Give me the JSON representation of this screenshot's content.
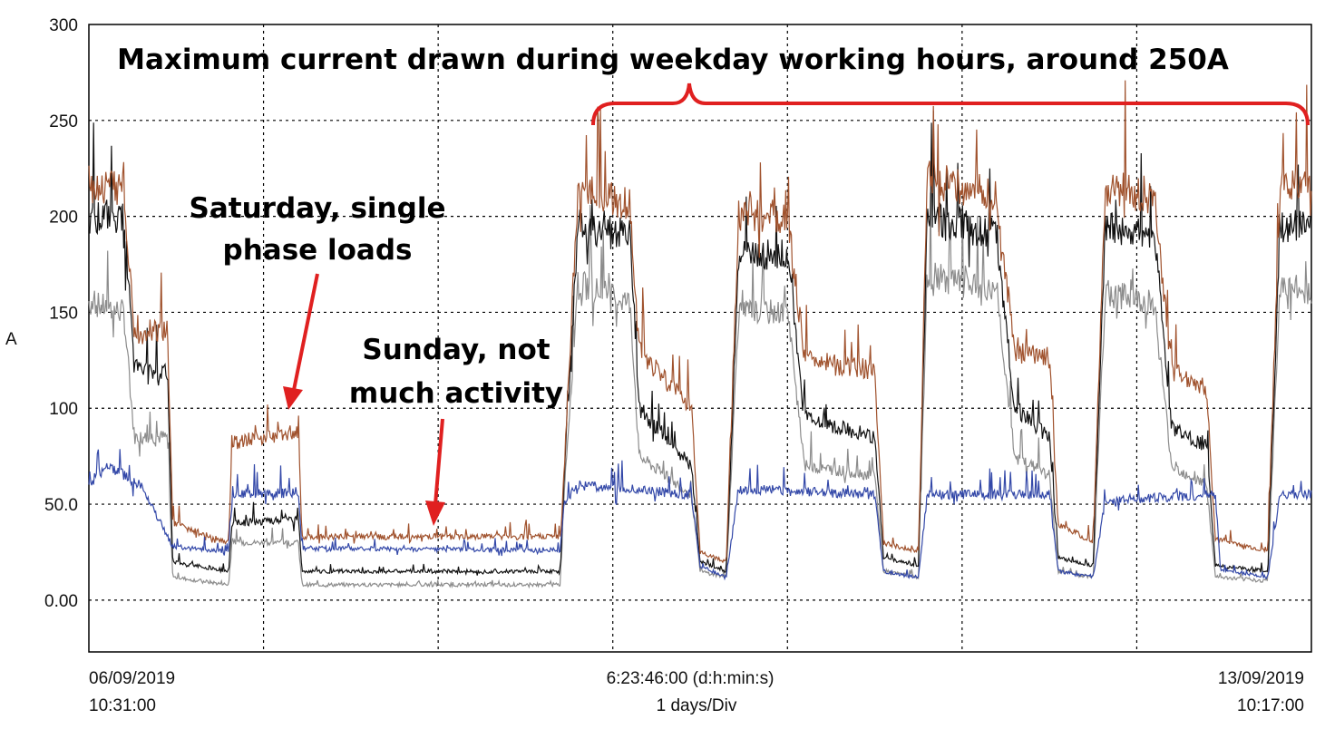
{
  "chart_data": {
    "type": "line",
    "ylabel": "A",
    "ylim": [
      -27,
      300
    ],
    "y_ticks": [
      {
        "value": 300,
        "label": "300"
      },
      {
        "value": 250,
        "label": "250"
      },
      {
        "value": 200,
        "label": "200"
      },
      {
        "value": 150,
        "label": "150"
      },
      {
        "value": 100,
        "label": "100"
      },
      {
        "value": 50,
        "label": "50.0"
      },
      {
        "value": 0,
        "label": "0.00"
      }
    ],
    "x_range_days": [
      0,
      7
    ],
    "x_grid_days": [
      1,
      2,
      3,
      4,
      5,
      6
    ],
    "x_labels": {
      "start_date": "06/09/2019",
      "start_time": "10:31:00",
      "center_duration": "6:23:46:00 (d:h:min:s)",
      "center_scale": "1 days/Div",
      "end_date": "13/09/2019",
      "end_time": "10:17:00"
    },
    "grid": true,
    "colors": {
      "phase_brown": "#a0522d",
      "phase_black": "#111111",
      "phase_gray": "#8c8c8c",
      "neutral_blue": "#3348a8",
      "annotation_red": "#e02020"
    },
    "series": [
      {
        "color_key": "phase_brown",
        "points": [
          [
            0,
            215
          ],
          [
            0.2,
            215
          ],
          [
            0.26,
            140
          ],
          [
            0.45,
            140
          ],
          [
            0.48,
            40
          ],
          [
            0.8,
            30
          ],
          [
            0.82,
            82
          ],
          [
            1.2,
            88
          ],
          [
            1.22,
            33
          ],
          [
            2.7,
            33
          ],
          [
            2.72,
            65
          ],
          [
            2.8,
            215
          ],
          [
            3.1,
            205
          ],
          [
            3.15,
            130
          ],
          [
            3.45,
            100
          ],
          [
            3.5,
            25
          ],
          [
            3.65,
            20
          ],
          [
            3.72,
            200
          ],
          [
            4.0,
            200
          ],
          [
            4.1,
            125
          ],
          [
            4.5,
            120
          ],
          [
            4.55,
            30
          ],
          [
            4.75,
            25
          ],
          [
            4.8,
            220
          ],
          [
            5.2,
            210
          ],
          [
            5.3,
            130
          ],
          [
            5.5,
            125
          ],
          [
            5.55,
            40
          ],
          [
            5.75,
            30
          ],
          [
            5.82,
            215
          ],
          [
            6.1,
            210
          ],
          [
            6.2,
            120
          ],
          [
            6.4,
            110
          ],
          [
            6.45,
            32
          ],
          [
            6.75,
            25
          ],
          [
            6.82,
            215
          ],
          [
            7.0,
            215
          ]
        ]
      },
      {
        "color_key": "phase_black",
        "points": [
          [
            0,
            200
          ],
          [
            0.2,
            200
          ],
          [
            0.26,
            120
          ],
          [
            0.45,
            120
          ],
          [
            0.48,
            20
          ],
          [
            0.8,
            15
          ],
          [
            0.82,
            40
          ],
          [
            1.2,
            42
          ],
          [
            1.22,
            15
          ],
          [
            2.7,
            15
          ],
          [
            2.72,
            60
          ],
          [
            2.8,
            195
          ],
          [
            3.1,
            190
          ],
          [
            3.15,
            100
          ],
          [
            3.45,
            70
          ],
          [
            3.5,
            20
          ],
          [
            3.65,
            15
          ],
          [
            3.72,
            180
          ],
          [
            4.0,
            180
          ],
          [
            4.1,
            95
          ],
          [
            4.5,
            85
          ],
          [
            4.55,
            22
          ],
          [
            4.75,
            18
          ],
          [
            4.8,
            200
          ],
          [
            5.2,
            190
          ],
          [
            5.3,
            100
          ],
          [
            5.5,
            85
          ],
          [
            5.55,
            22
          ],
          [
            5.75,
            18
          ],
          [
            5.82,
            195
          ],
          [
            6.1,
            190
          ],
          [
            6.2,
            90
          ],
          [
            6.4,
            80
          ],
          [
            6.45,
            18
          ],
          [
            6.75,
            15
          ],
          [
            6.82,
            195
          ],
          [
            7.0,
            195
          ]
        ]
      },
      {
        "color_key": "phase_gray",
        "points": [
          [
            0,
            155
          ],
          [
            0.2,
            150
          ],
          [
            0.26,
            85
          ],
          [
            0.45,
            85
          ],
          [
            0.48,
            12
          ],
          [
            0.8,
            8
          ],
          [
            0.82,
            30
          ],
          [
            1.2,
            30
          ],
          [
            1.22,
            8
          ],
          [
            2.7,
            8
          ],
          [
            2.72,
            55
          ],
          [
            2.8,
            165
          ],
          [
            3.1,
            155
          ],
          [
            3.15,
            75
          ],
          [
            3.45,
            55
          ],
          [
            3.5,
            15
          ],
          [
            3.65,
            12
          ],
          [
            3.72,
            150
          ],
          [
            4.0,
            150
          ],
          [
            4.1,
            70
          ],
          [
            4.5,
            65
          ],
          [
            4.55,
            15
          ],
          [
            4.75,
            12
          ],
          [
            4.8,
            170
          ],
          [
            5.2,
            160
          ],
          [
            5.3,
            75
          ],
          [
            5.5,
            65
          ],
          [
            5.55,
            15
          ],
          [
            5.75,
            12
          ],
          [
            5.82,
            160
          ],
          [
            6.1,
            155
          ],
          [
            6.2,
            70
          ],
          [
            6.4,
            60
          ],
          [
            6.45,
            12
          ],
          [
            6.75,
            10
          ],
          [
            6.82,
            165
          ],
          [
            7.0,
            160
          ]
        ]
      },
      {
        "color_key": "neutral_blue",
        "points": [
          [
            0,
            60
          ],
          [
            0.1,
            70
          ],
          [
            0.3,
            60
          ],
          [
            0.48,
            28
          ],
          [
            0.8,
            25
          ],
          [
            0.82,
            55
          ],
          [
            1.2,
            56
          ],
          [
            1.22,
            27
          ],
          [
            2.7,
            26
          ],
          [
            2.72,
            50
          ],
          [
            2.8,
            60
          ],
          [
            3.45,
            55
          ],
          [
            3.5,
            18
          ],
          [
            3.65,
            12
          ],
          [
            3.72,
            58
          ],
          [
            4.5,
            55
          ],
          [
            4.55,
            15
          ],
          [
            4.75,
            12
          ],
          [
            4.8,
            55
          ],
          [
            5.5,
            55
          ],
          [
            5.55,
            15
          ],
          [
            5.75,
            12
          ],
          [
            5.82,
            52
          ],
          [
            6.45,
            55
          ],
          [
            6.48,
            16
          ],
          [
            6.75,
            12
          ],
          [
            6.82,
            55
          ],
          [
            7.0,
            55
          ]
        ]
      }
    ],
    "annotations": {
      "top": "Maximum current drawn during weekday working hours, around 250A",
      "saturday_line1": "Saturday, single",
      "saturday_line2": "phase loads",
      "sunday_line1": "Sunday, not",
      "sunday_line2": "much activity"
    }
  }
}
